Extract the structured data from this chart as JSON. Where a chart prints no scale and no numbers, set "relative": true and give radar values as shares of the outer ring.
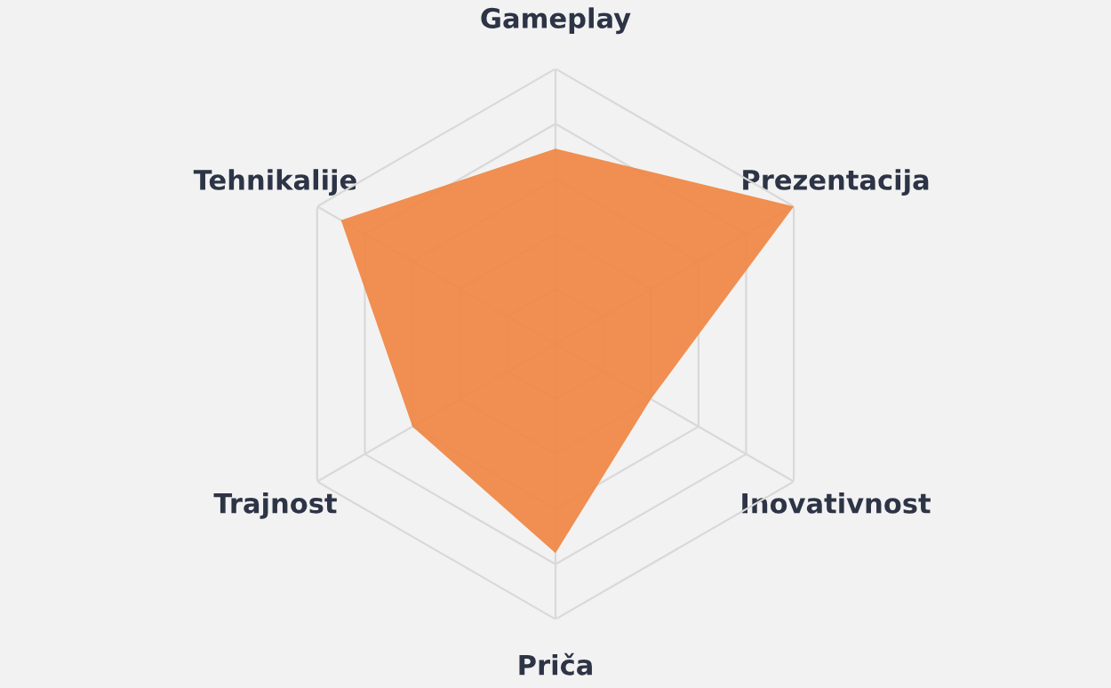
{
  "chart_data": {
    "type": "radar",
    "relative": true,
    "categories": [
      "Gameplay",
      "Prezentacija",
      "Inovativnost",
      "Priča",
      "Trajnost",
      "Tehnikalije"
    ],
    "series": [
      {
        "color": "#f0843f",
        "values": [
          0.71,
          1.0,
          0.4,
          0.76,
          0.6,
          0.9
        ]
      }
    ],
    "grid": true,
    "legend": false
  }
}
